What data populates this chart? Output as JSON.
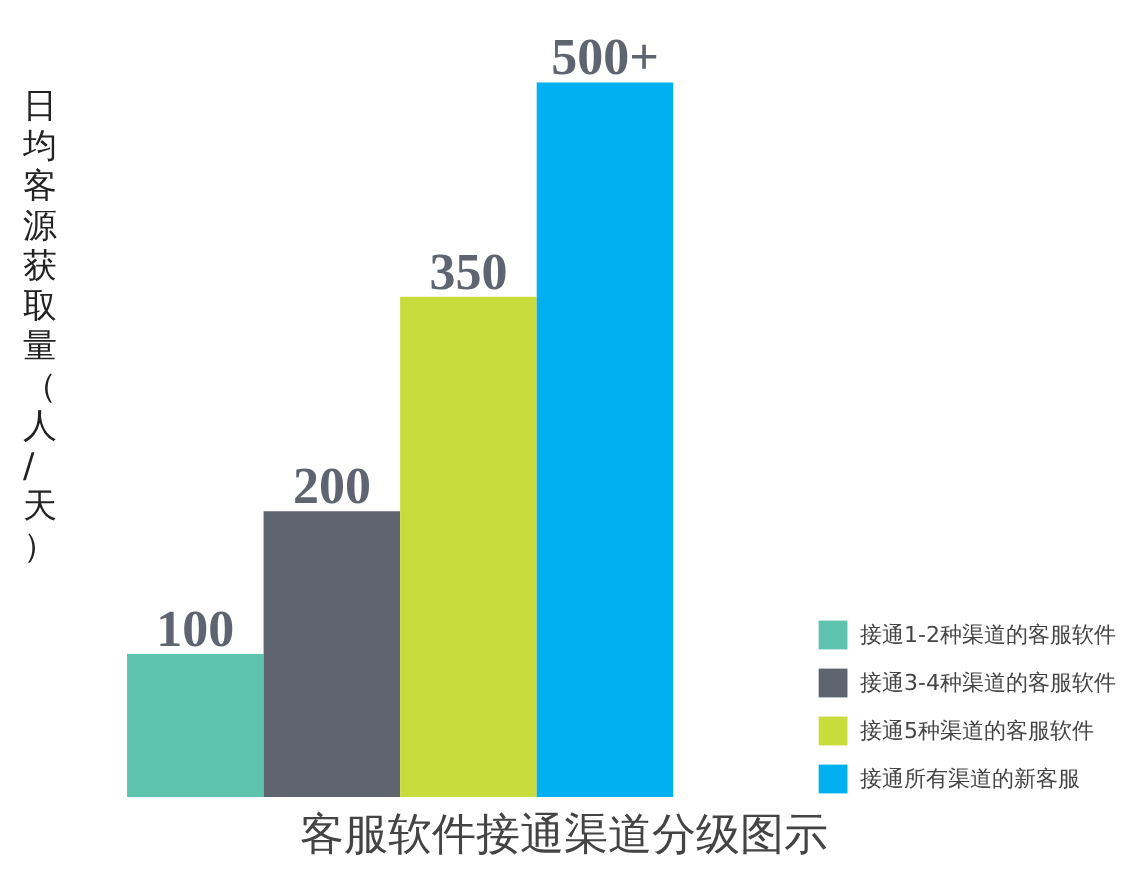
{
  "chart_data": {
    "type": "bar",
    "title": "客服软件接通渠道分级图示",
    "ylabel": "日均客源获取量（人/天）",
    "categories": [
      null,
      null,
      null,
      null
    ],
    "series": [
      {
        "name": "接通1-2种渠道的客服软件",
        "color": "#5ec4b0",
        "values": [
          100,
          null,
          null,
          null
        ],
        "value_labels": [
          "100",
          null,
          null,
          null
        ]
      },
      {
        "name": "接通3-4种渠道的客服软件",
        "color": "#5f6570",
        "values": [
          null,
          200,
          null,
          null
        ],
        "value_labels": [
          null,
          "200",
          null,
          null
        ]
      },
      {
        "name": "接通5种渠道的客服软件",
        "color": "#c8dc3c",
        "values": [
          null,
          null,
          350,
          null
        ],
        "value_labels": [
          null,
          null,
          "350",
          null
        ]
      },
      {
        "name": "接通所有渠道的新客服",
        "color": "#00b0f0",
        "values": [
          null,
          null,
          null,
          500
        ],
        "value_labels": [
          null,
          null,
          null,
          "500+"
        ]
      }
    ],
    "stacked": true,
    "legend": "bottom right"
  }
}
